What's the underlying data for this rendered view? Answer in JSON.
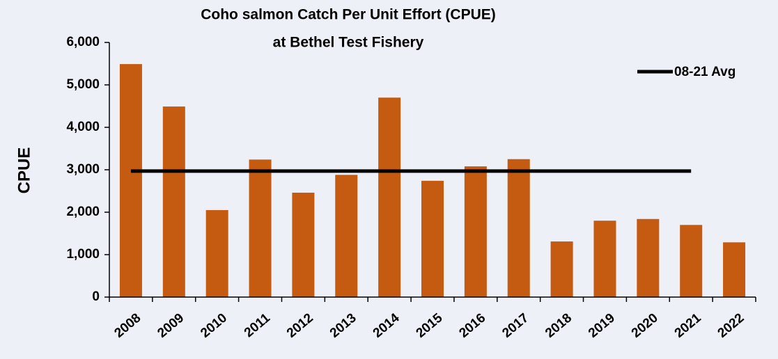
{
  "chart_data": {
    "type": "bar",
    "title": [
      "Coho salmon Catch Per Unit Effort (CPUE)",
      "at Bethel Test Fishery"
    ],
    "y_label": "CPUE",
    "categories": [
      "2008",
      "2009",
      "2010",
      "2011",
      "2012",
      "2013",
      "2014",
      "2015",
      "2016",
      "2017",
      "2018",
      "2019",
      "2020",
      "2021",
      "2022"
    ],
    "series": [
      {
        "name": "CPUE",
        "type": "bar",
        "color": "#c55a11",
        "values": [
          5490,
          4490,
          2050,
          3240,
          2460,
          2880,
          4700,
          2740,
          3080,
          3250,
          1310,
          1800,
          1840,
          1700,
          1290
        ]
      },
      {
        "name": "08-21 Avg",
        "type": "line",
        "color": "#000000",
        "values": [
          2970,
          2970,
          2970,
          2970,
          2970,
          2970,
          2970,
          2970,
          2970,
          2970,
          2970,
          2970,
          2970,
          2970,
          null
        ]
      }
    ],
    "ylim": [
      0,
      6000
    ],
    "yticks": [
      0,
      {
        "value": 1000,
        "label": "1,000"
      },
      {
        "value": 2000,
        "label": "2,000"
      },
      {
        "value": 3000,
        "label": "3,000"
      },
      {
        "value": 4000,
        "label": "4,000"
      },
      {
        "value": 5000,
        "label": "5,000"
      },
      {
        "value": 6000,
        "label": "6,000"
      }
    ],
    "legend": "top-right",
    "grid": false
  }
}
